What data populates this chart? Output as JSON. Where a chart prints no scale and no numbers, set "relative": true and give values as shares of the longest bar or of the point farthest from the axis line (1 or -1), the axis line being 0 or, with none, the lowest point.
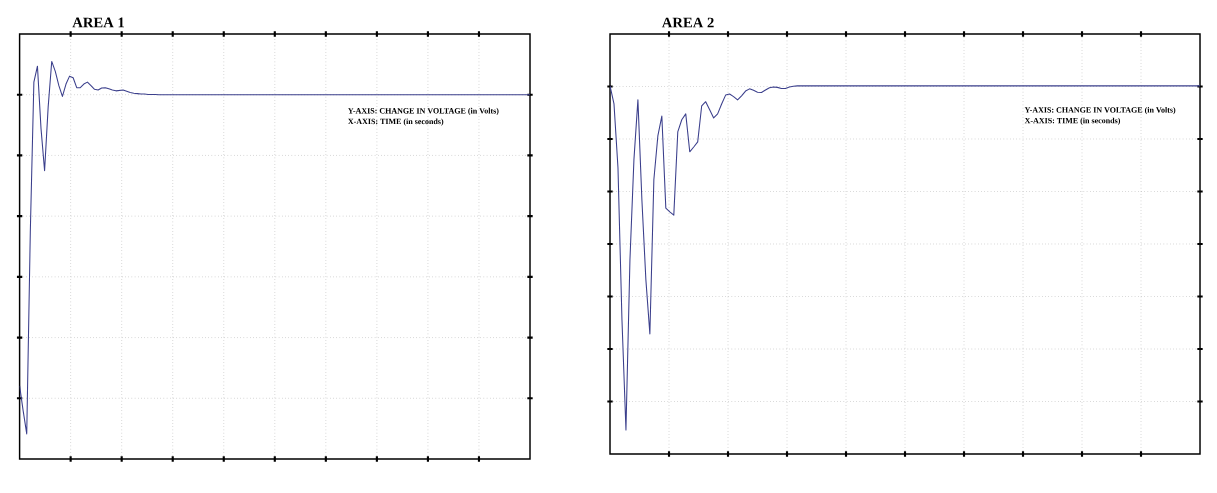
{
  "chart_data": [
    {
      "type": "line",
      "title": "AREA 1",
      "relative": true,
      "grid": true,
      "color": "#3b3f8c",
      "annotations": [
        "Y-AXIS: CHANGE IN VOLTAGE (in Volts)",
        "X-AXIS: TIME (in seconds)"
      ],
      "categories": [
        null,
        null,
        null,
        null,
        null,
        null,
        null,
        null,
        null,
        null,
        null,
        null,
        null,
        null,
        null,
        null,
        null,
        null,
        null,
        null,
        null,
        null,
        null,
        null,
        null,
        null,
        null,
        null,
        null,
        null,
        null,
        null,
        null,
        null,
        null,
        null,
        null,
        null,
        null,
        null,
        null,
        null,
        null,
        null,
        null,
        null,
        null,
        null,
        null,
        null,
        null,
        null,
        null,
        null,
        null,
        null,
        null,
        null,
        null,
        null,
        null,
        null,
        null,
        null,
        null,
        null,
        null,
        null,
        null,
        null,
        null,
        null,
        null,
        null,
        null,
        null,
        null,
        null,
        null,
        null,
        null,
        null,
        null,
        null,
        null,
        null,
        null,
        null,
        null,
        null,
        null,
        null,
        null,
        null,
        null,
        null,
        null,
        null,
        null,
        null,
        null,
        null,
        null,
        null,
        null,
        null,
        null,
        null,
        null,
        null,
        null,
        null,
        null,
        null,
        null,
        null,
        null,
        null,
        null,
        null,
        null,
        null,
        null,
        null,
        null,
        null,
        null,
        null,
        null,
        null,
        null,
        null,
        null,
        null,
        null,
        null,
        null,
        null,
        null,
        null,
        null,
        null,
        null,
        null
      ],
      "values": [
        0.184,
        0.121,
        0.063,
        0.571,
        0.948,
        0.988,
        0.831,
        0.725,
        0.885,
        1,
        0.975,
        0.939,
        0.912,
        0.943,
        0.963,
        0.959,
        0.934,
        0.934,
        0.943,
        0.948,
        0.939,
        0.93,
        0.928,
        0.933,
        0.934,
        0.931,
        0.928,
        0.926,
        0.927,
        0.928,
        0.925,
        0.922,
        0.92,
        0.919,
        0.918,
        0.918,
        0.917,
        0.917,
        0.917,
        0.916,
        0.916,
        0.916,
        0.916,
        0.916,
        0.916,
        0.916,
        0.916,
        0.916,
        0.916,
        0.916,
        0.916,
        0.916,
        0.916,
        0.916,
        0.916,
        0.916,
        0.916,
        0.916,
        0.916,
        0.916,
        0.916,
        0.916,
        0.916,
        0.916,
        0.916,
        0.916,
        0.916,
        0.916,
        0.916,
        0.916,
        0.916,
        0.916,
        0.916,
        0.916,
        0.916,
        0.916,
        0.916,
        0.916,
        0.916,
        0.916,
        0.916,
        0.916,
        0.916,
        0.916,
        0.916,
        0.916,
        0.916,
        0.916,
        0.916,
        0.916,
        0.916,
        0.916,
        0.916,
        0.916,
        0.916,
        0.916,
        0.916,
        0.916,
        0.916,
        0.916,
        0.916,
        0.916,
        0.916,
        0.916,
        0.916,
        0.916,
        0.916,
        0.916,
        0.916,
        0.916,
        0.916,
        0.916,
        0.916,
        0.916,
        0.916,
        0.916,
        0.916,
        0.916,
        0.916,
        0.916,
        0.916,
        0.916,
        0.916,
        0.916,
        0.916,
        0.916,
        0.916,
        0.916,
        0.916,
        0.916,
        0.916,
        0.916,
        0.916,
        0.916,
        0.916,
        0.916,
        0.916,
        0.916,
        0.916,
        0.916,
        0.916,
        0.916,
        0.916,
        0.916
      ]
    },
    {
      "type": "line",
      "title": "AREA 2",
      "relative": true,
      "grid": true,
      "color": "#3b3f8c",
      "annotations": [
        "Y-AXIS: CHANGE IN VOLTAGE (in Volts)",
        "X-AXIS: TIME (in seconds)"
      ],
      "categories": [
        null,
        null,
        null,
        null,
        null,
        null,
        null,
        null,
        null,
        null,
        null,
        null,
        null,
        null,
        null,
        null,
        null,
        null,
        null,
        null,
        null,
        null,
        null,
        null,
        null,
        null,
        null,
        null,
        null,
        null,
        null,
        null,
        null,
        null,
        null,
        null,
        null,
        null,
        null,
        null,
        null,
        null,
        null,
        null,
        null,
        null,
        null,
        null,
        null,
        null,
        null,
        null,
        null,
        null,
        null,
        null,
        null,
        null,
        null,
        null,
        null,
        null,
        null,
        null,
        null,
        null,
        null,
        null,
        null,
        null,
        null,
        null,
        null,
        null,
        null,
        null,
        null,
        null,
        null,
        null,
        null,
        null,
        null,
        null,
        null,
        null,
        null,
        null,
        null,
        null,
        null,
        null,
        null,
        null,
        null,
        null,
        null,
        null,
        null,
        null,
        null,
        null,
        null,
        null,
        null,
        null,
        null,
        null,
        null,
        null,
        null,
        null,
        null,
        null,
        null,
        null,
        null,
        null,
        null,
        null,
        null,
        null,
        null,
        null,
        null,
        null,
        null,
        null,
        null,
        null,
        null,
        null,
        null,
        null,
        null,
        null,
        null,
        null,
        null,
        null,
        null,
        null,
        null,
        null,
        null,
        null,
        null,
        null,
        null
      ],
      "values": [
        1,
        0.951,
        0.777,
        0.364,
        0.065,
        0.527,
        0.799,
        0.962,
        0.69,
        0.473,
        0.326,
        0.745,
        0.864,
        0.918,
        0.668,
        0.658,
        0.649,
        0.875,
        0.908,
        0.924,
        0.821,
        0.834,
        0.848,
        0.946,
        0.957,
        0.935,
        0.913,
        0.924,
        0.951,
        0.975,
        0.978,
        0.971,
        0.962,
        0.973,
        0.986,
        0.992,
        0.988,
        0.983,
        0.982,
        0.989,
        0.995,
        0.997,
        0.996,
        0.993,
        0.993,
        0.997,
        0.999,
        1,
        1,
        1,
        1,
        1,
        1,
        1,
        1,
        1,
        1,
        1,
        1,
        1,
        1,
        1,
        1,
        1,
        1,
        1,
        1,
        1,
        1,
        1,
        1,
        1,
        1,
        1,
        1,
        1,
        1,
        1,
        1,
        1,
        1,
        1,
        1,
        1,
        1,
        1,
        1,
        1,
        1,
        1,
        1,
        1,
        1,
        1,
        1,
        1,
        1,
        1,
        1,
        1,
        1,
        1,
        1,
        1,
        1,
        1,
        1,
        1,
        1,
        1,
        1,
        1,
        1,
        1,
        1,
        1,
        1,
        1,
        1,
        1,
        1,
        1,
        1,
        1,
        1,
        1,
        1,
        1,
        1,
        1,
        1,
        1,
        1,
        1,
        1,
        1,
        1,
        1,
        1,
        1,
        1,
        1,
        1,
        1,
        1,
        1,
        1,
        1,
        1
      ]
    }
  ]
}
